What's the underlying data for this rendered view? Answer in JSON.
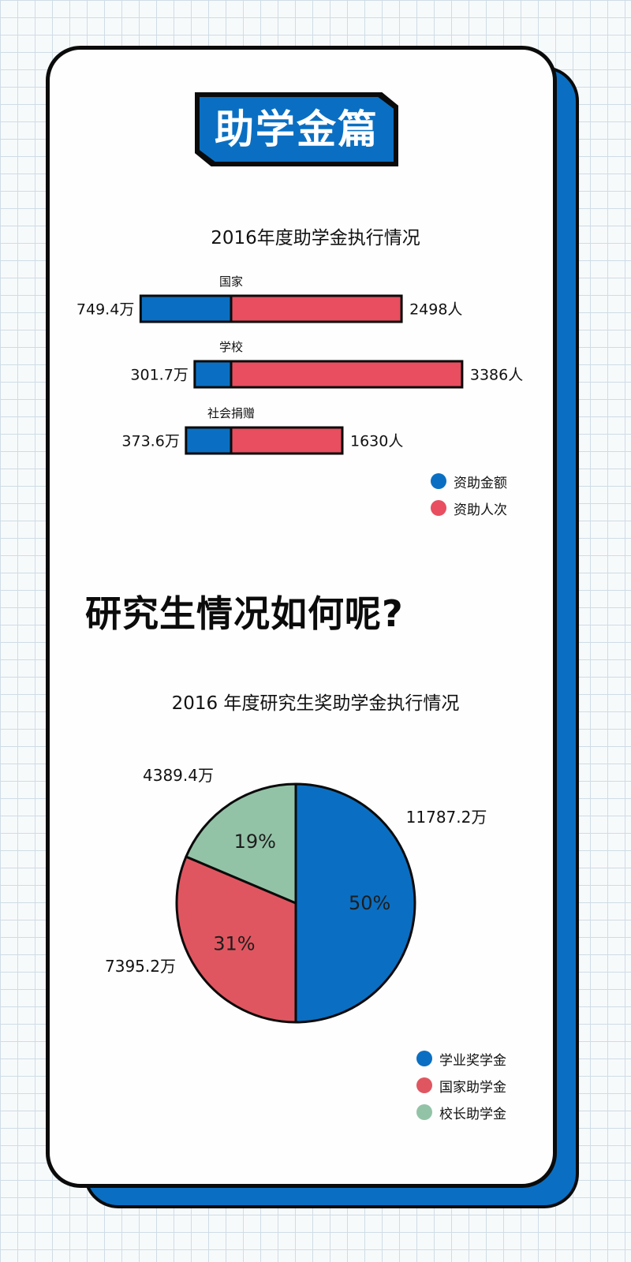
{
  "banner": {
    "title": "助学金篇"
  },
  "headline": "研究生情况如何呢?",
  "colors": {
    "blue": "#0a6fc2",
    "red": "#e84e5f",
    "green": "#93c3a7",
    "ink": "#0b0b0b"
  },
  "chart_data": [
    {
      "type": "bar",
      "orientation": "horizontal",
      "stacked": true,
      "title": "2016年度助学金执行情况",
      "categories": [
        "国家",
        "学校",
        "社会捐赠"
      ],
      "series": [
        {
          "name": "资助金额",
          "values": [
            749.4,
            301.7,
            373.6
          ],
          "labels": [
            "749.4万",
            "301.7万",
            "373.6万"
          ],
          "color": "#0a6fc2"
        },
        {
          "name": "资助人次",
          "values": [
            2498,
            3386,
            1630
          ],
          "labels": [
            "2498人",
            "3386人",
            "1630人"
          ],
          "color": "#e84e5f"
        }
      ],
      "legend_position": "bottom-right"
    },
    {
      "type": "pie",
      "title": "2016 年度研究生奖助学金执行情况",
      "slices": [
        {
          "name": "学业奖学金",
          "value": 11787.2,
          "value_label": "11787.2万",
          "percent_label": "50%",
          "color": "#0a6fc2"
        },
        {
          "name": "国家助学金",
          "value": 7395.2,
          "value_label": "7395.2万",
          "percent_label": "31%",
          "color": "#e05660"
        },
        {
          "name": "校长助学金",
          "value": 4389.4,
          "value_label": "4389.4万",
          "percent_label": "19%",
          "color": "#93c3a7"
        }
      ],
      "legend_position": "bottom-right"
    }
  ]
}
